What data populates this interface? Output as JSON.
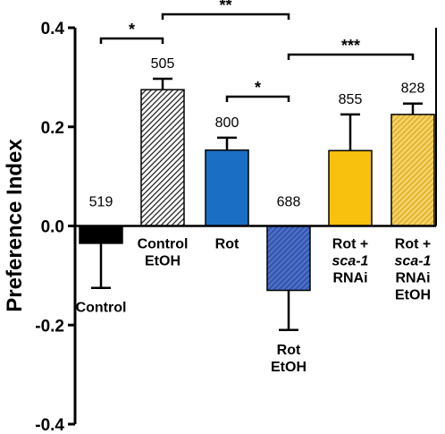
{
  "chart_data": {
    "type": "bar",
    "ylabel": "Preference Index",
    "ylim": [
      -0.4,
      0.4
    ],
    "yticks": [
      "0.4",
      "0.2",
      "0.0",
      "-0.2",
      "-0.4"
    ],
    "ytick_values": [
      0.4,
      0.2,
      0.0,
      -0.2,
      -0.4
    ],
    "grid": false,
    "categories": [
      {
        "lines": [
          {
            "text": "Control"
          }
        ]
      },
      {
        "lines": [
          {
            "text": "Control"
          },
          {
            "text": "EtOH"
          }
        ]
      },
      {
        "lines": [
          {
            "text": "Rot"
          }
        ]
      },
      {
        "lines": [
          {
            "text": "Rot"
          },
          {
            "text": "EtOH"
          }
        ]
      },
      {
        "lines": [
          {
            "text": "Rot +"
          },
          {
            "text": "sca-1",
            "italic": true
          },
          {
            "text": "RNAi"
          }
        ]
      },
      {
        "lines": [
          {
            "text": "Rot +"
          },
          {
            "text": "sca-1",
            "italic": true
          },
          {
            "text": "RNAi"
          },
          {
            "text": "EtOH"
          }
        ]
      }
    ],
    "values": [
      -0.035,
      0.275,
      0.153,
      -0.13,
      0.152,
      0.225
    ],
    "errors": [
      0.09,
      0.022,
      0.025,
      0.08,
      0.073,
      0.022
    ],
    "n": [
      "519",
      "505",
      "800",
      "688",
      "855",
      "828"
    ],
    "colors": [
      "#000000",
      "#ffffff",
      "#1a6fc4",
      "#4b6ec9",
      "#f8c10e",
      "#f5d266"
    ],
    "hatched": [
      false,
      true,
      false,
      true,
      false,
      true
    ],
    "significance": [
      {
        "label": "*",
        "from": 0,
        "to": 1
      },
      {
        "label": "**",
        "from": 1,
        "to": 3
      },
      {
        "label": "*",
        "from": 2,
        "to": 3
      },
      {
        "label": "***",
        "from": 3,
        "to": 5
      }
    ]
  }
}
